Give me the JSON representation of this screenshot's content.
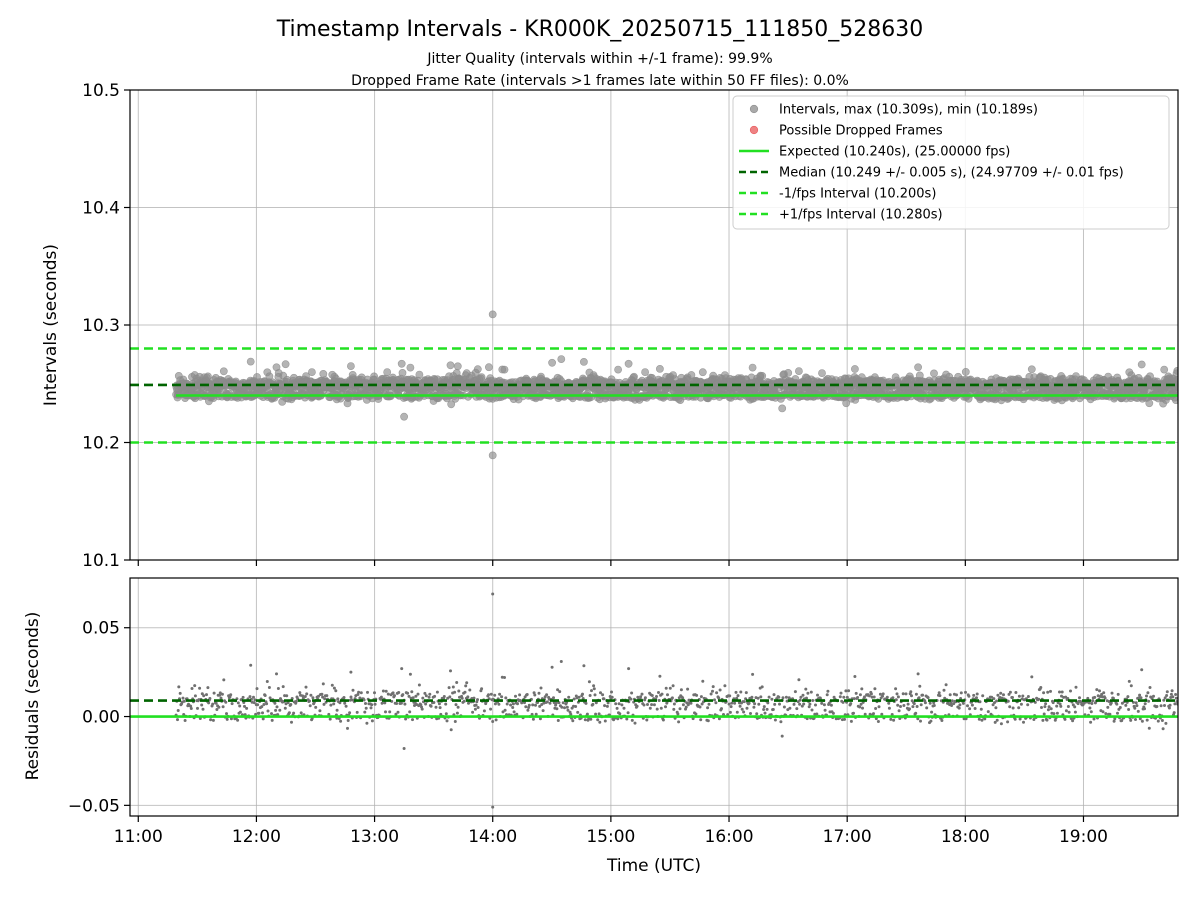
{
  "title": "Timestamp Intervals - KR000K_20250715_111850_528630",
  "subtitles": [
    "Jitter Quality (intervals within +/-1 frame): 99.9%",
    "Dropped Frame Rate (intervals >1 frames late within 50 FF files): 0.0%"
  ],
  "colors": {
    "points": "#8c8c8c",
    "dropped": "#e8585a",
    "expected": "#22e022",
    "median": "#006400",
    "interval_band": "#22e022"
  },
  "chart_data": [
    {
      "type": "scatter",
      "panel": "intervals",
      "ylabel": "Intervals (seconds)",
      "ylim": [
        10.1,
        10.5
      ],
      "yticks": [
        10.1,
        10.2,
        10.3,
        10.4,
        10.5
      ],
      "ytick_labels": [
        "10.1",
        "10.2",
        "10.3",
        "10.4",
        "10.5"
      ],
      "xlim_hours": [
        10.93,
        19.8
      ],
      "grid": true,
      "legend_placement": "top-right",
      "legend": [
        {
          "label": "Intervals, max (10.309s), min (10.189s)",
          "kind": "marker",
          "color": "#8c8c8c"
        },
        {
          "label": "Possible Dropped Frames",
          "kind": "marker",
          "color": "#e8585a"
        },
        {
          "label": "Expected (10.240s), (25.00000 fps)",
          "kind": "solid",
          "color": "#22e022"
        },
        {
          "label": "Median (10.249 +/- 0.005 s), (24.97709 +/- 0.01 fps)",
          "kind": "dashed",
          "color": "#006400"
        },
        {
          "label": "-1/fps Interval (10.200s)",
          "kind": "dashed",
          "color": "#22e022"
        },
        {
          "label": "+1/fps Interval (10.280s)",
          "kind": "dashed",
          "color": "#22e022"
        }
      ],
      "reference_lines": {
        "expected": 10.24,
        "median": 10.249,
        "minus_one_fps": 10.2,
        "plus_one_fps": 10.28
      },
      "data_start_hour": 11.32,
      "data_end_hour": 19.8,
      "max_interval": 10.309,
      "max_interval_hour": 14.0,
      "min_interval": 10.189,
      "min_interval_hour": 14.0
    },
    {
      "type": "scatter",
      "panel": "residuals",
      "ylabel": "Residuals (seconds)",
      "xlabel": "Time (UTC)",
      "ylim": [
        -0.056,
        0.078
      ],
      "yticks": [
        -0.05,
        0.0,
        0.05
      ],
      "ytick_labels": [
        "−0.05",
        "0.00",
        "0.05"
      ],
      "grid": true,
      "reference_lines": {
        "zero": 0.0,
        "median": 0.009
      },
      "xticks_hours": [
        11,
        12,
        13,
        14,
        15,
        16,
        17,
        18,
        19
      ],
      "xtick_labels": [
        "11:00",
        "12:00",
        "13:00",
        "14:00",
        "15:00",
        "16:00",
        "17:00",
        "18:00",
        "19:00"
      ],
      "max_residual": 0.069,
      "min_residual": -0.051
    }
  ]
}
